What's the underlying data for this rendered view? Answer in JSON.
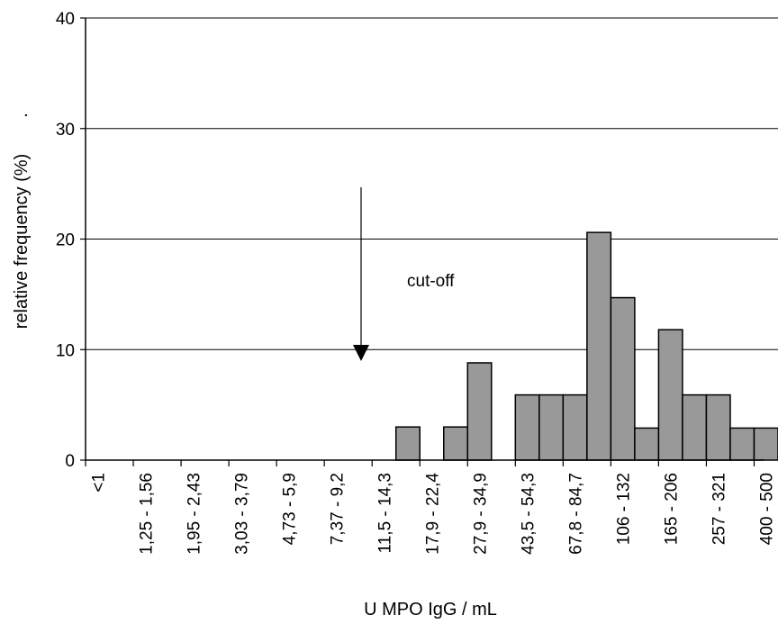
{
  "chart_data": {
    "type": "bar",
    "title": "",
    "xlabel": "U  MPO IgG / mL",
    "ylabel": "relative frequency (%)",
    "ylabel_suffix": ".",
    "ylim": [
      0,
      40
    ],
    "yticks": [
      0,
      10,
      20,
      30,
      40
    ],
    "grid": true,
    "colors": {
      "bar_fill": "#999999",
      "bar_stroke": "#000000",
      "grid": "#000000"
    },
    "categories": [
      "<1",
      "",
      "1,25 - 1,56",
      "",
      "1,95 - 2,43",
      "",
      "3,03 - 3,79",
      "",
      "4,73 - 5,9",
      "",
      "7,37 - 9,2",
      "",
      "11,5 - 14,3",
      "",
      "17,9 - 22,4",
      "",
      "27,9 - 34,9",
      "",
      "43,5 - 54,3",
      "",
      "67,8 - 84,7",
      "",
      "106 - 132",
      "",
      "165 - 206",
      "",
      "257 - 321",
      "",
      "400 - 500"
    ],
    "values": [
      0,
      0,
      0,
      0,
      0,
      0,
      0,
      0,
      0,
      0,
      0,
      0,
      0,
      3,
      0,
      3,
      8.8,
      0,
      5.9,
      5.9,
      5.9,
      20.6,
      14.7,
      2.9,
      11.8,
      5.9,
      5.9,
      2.9,
      2.9
    ],
    "annotation": {
      "text": "cut-off",
      "arrow_at_category": "11,5 - 14,3"
    }
  }
}
